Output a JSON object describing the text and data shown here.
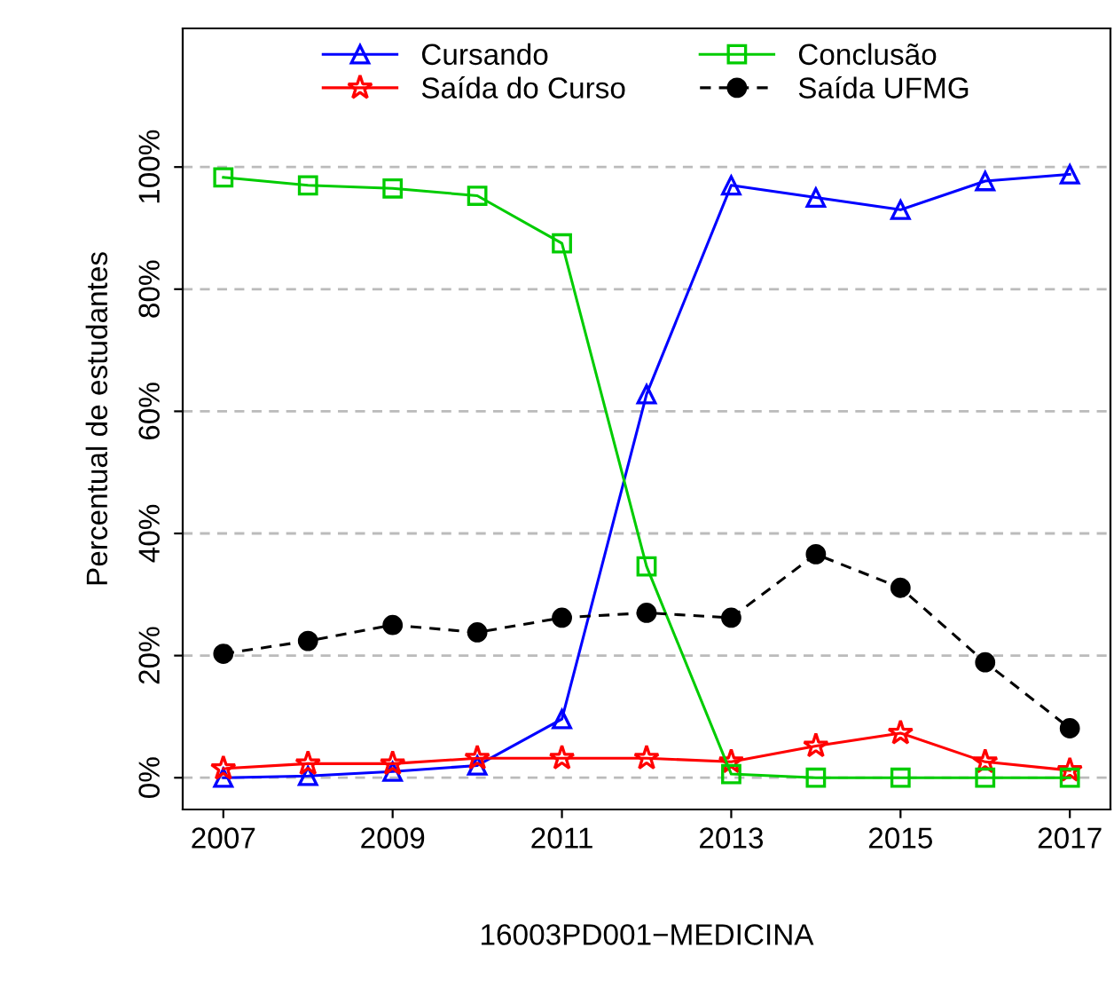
{
  "chart_data": {
    "type": "line",
    "xlabel": "16003PD001−MEDICINA",
    "ylabel": "Percentual de estudantes",
    "x": [
      2007,
      2008,
      2009,
      2010,
      2011,
      2012,
      2013,
      2014,
      2015,
      2016,
      2017
    ],
    "series": [
      {
        "name": "Cursando",
        "color": "#0000ff",
        "marker": "triangle",
        "line_style": "solid",
        "values": [
          0,
          0.3,
          1,
          2,
          9.6,
          62.8,
          97,
          95,
          93,
          97.7,
          98.8
        ]
      },
      {
        "name": "Saída do Curso",
        "color": "#ff0000",
        "marker": "star",
        "line_style": "solid",
        "values": [
          1.5,
          2.3,
          2.3,
          3.2,
          3.2,
          3.2,
          2.6,
          5.2,
          7.3,
          2.6,
          1.2
        ]
      },
      {
        "name": "Conclusão",
        "color": "#00cc00",
        "marker": "square",
        "line_style": "solid",
        "values": [
          98.3,
          97,
          96.5,
          95.3,
          87.5,
          34.6,
          0.6,
          0,
          0,
          0,
          0
        ]
      },
      {
        "name": "Saída UFMG",
        "color": "#000000",
        "marker": "circle",
        "line_style": "dashed",
        "values": [
          20.3,
          22.4,
          25,
          23.8,
          26.2,
          27,
          26.2,
          36.6,
          31.1,
          18.9,
          8.1
        ]
      }
    ],
    "xlim": [
      2006.52,
      2017.48
    ],
    "ylim": [
      -5.2,
      122.7
    ],
    "xticks": [
      2007,
      2009,
      2011,
      2013,
      2015,
      2017
    ],
    "yticks": [
      {
        "value": 0,
        "label": "0%"
      },
      {
        "value": 20,
        "label": "20%"
      },
      {
        "value": 40,
        "label": "40%"
      },
      {
        "value": 60,
        "label": "60%"
      },
      {
        "value": 80,
        "label": "80%"
      },
      {
        "value": 100,
        "label": "100%"
      }
    ],
    "grid": "y",
    "legend": "top"
  }
}
